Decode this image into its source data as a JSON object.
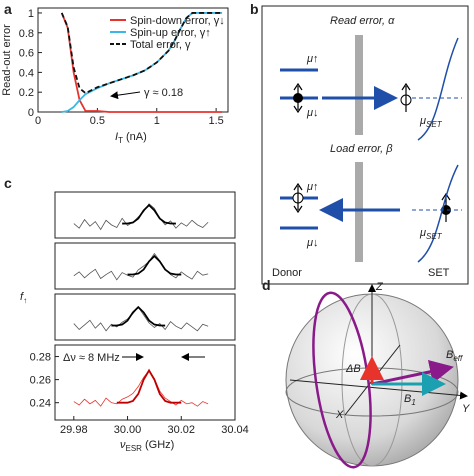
{
  "panel_labels": [
    "a",
    "b",
    "c",
    "d"
  ],
  "chart_data": [
    {
      "type": "line",
      "xlabel": {
        "main": "I",
        "sub": "T",
        "unit": " (nA)"
      },
      "ylabel": "Read-out error",
      "x": [
        0.2,
        0.25,
        0.3,
        0.35,
        0.4,
        0.5,
        0.6,
        0.7,
        0.8,
        0.9,
        1.0,
        1.1,
        1.15,
        1.2,
        1.25,
        1.3,
        1.4,
        1.55
      ],
      "series": [
        {
          "name": "Spin-down error, γ↓",
          "color": "#e8332d",
          "values": [
            1,
            0.85,
            0.4,
            0.12,
            0.01,
            0.01,
            0,
            0,
            0,
            0,
            0,
            0,
            0,
            0,
            0,
            0,
            0,
            0
          ]
        },
        {
          "name": "Spin-up error, γ↑",
          "color": "#3bb6e6",
          "values": [
            0,
            0.01,
            0.05,
            0.12,
            0.18,
            0.24,
            0.29,
            0.33,
            0.37,
            0.42,
            0.5,
            0.62,
            0.72,
            0.84,
            0.95,
            1,
            1,
            1
          ]
        },
        {
          "name": "Total error, γ",
          "color": "#111111",
          "dash": true,
          "values": [
            1,
            0.86,
            0.45,
            0.24,
            0.19,
            0.25,
            0.29,
            0.33,
            0.37,
            0.42,
            0.5,
            0.62,
            0.72,
            0.84,
            0.95,
            1,
            1,
            1
          ]
        }
      ],
      "xlim": [
        0,
        1.6
      ],
      "ylim": [
        0,
        1.05
      ],
      "xticks": [
        0,
        0.5,
        1,
        1.5
      ],
      "yticks": [
        0,
        0.2,
        0.4,
        0.6,
        0.8,
        1
      ],
      "legend": "upper right",
      "annotation": "γ ≈ 0.18"
    },
    {
      "type": "line",
      "ylabel": {
        "main": "f",
        "sub": "↑"
      },
      "xlabel": {
        "main": "ν",
        "sub": "ESR",
        "unit": " (GHz)"
      },
      "x": [
        29.98,
        29.982,
        29.984,
        29.986,
        29.988,
        29.99,
        29.992,
        29.994,
        29.996,
        29.998,
        30.0,
        30.002,
        30.004,
        30.006,
        30.008,
        30.01,
        30.012,
        30.014,
        30.016,
        30.018,
        30.02,
        30.022,
        30.024,
        30.026,
        30.028,
        30.03
      ],
      "xlim": [
        29.973,
        30.04
      ],
      "xticks": [
        29.98,
        {
          "value": 30,
          "label": "30.00"
        },
        30.02,
        30.04
      ],
      "panels": [
        {
          "ylim": [
            0.2,
            0.9
          ],
          "series": [
            {
              "color": "#555555",
              "values": [
                0.42,
                0.35,
                0.48,
                0.38,
                0.45,
                0.33,
                0.47,
                0.4,
                0.36,
                0.5,
                0.39,
                0.44,
                0.52,
                0.6,
                0.72,
                0.65,
                0.5,
                0.4,
                0.46,
                0.35,
                0.43,
                0.38,
                0.47,
                0.4,
                0.36,
                0.44
              ]
            },
            {
              "color": "#000000",
              "values": [
                null,
                null,
                null,
                null,
                null,
                null,
                null,
                null,
                null,
                0.42,
                0.421,
                0.435,
                0.496,
                0.62,
                0.7,
                0.62,
                0.496,
                0.435,
                0.421,
                0.42,
                null,
                null,
                null,
                null,
                null,
                null
              ]
            }
          ]
        },
        {
          "ylim": [
            0.2,
            0.9
          ],
          "series": [
            {
              "color": "#555555",
              "values": [
                0.4,
                0.46,
                0.37,
                0.44,
                0.5,
                0.36,
                0.42,
                0.47,
                0.34,
                0.45,
                0.41,
                0.38,
                0.49,
                0.55,
                0.62,
                0.74,
                0.63,
                0.5,
                0.42,
                0.37,
                0.46,
                0.4,
                0.35,
                0.47,
                0.41,
                0.43
              ]
            },
            {
              "color": "#000000",
              "values": [
                null,
                null,
                null,
                null,
                null,
                null,
                null,
                null,
                null,
                null,
                0.42,
                0.421,
                0.435,
                0.496,
                0.62,
                0.7,
                0.62,
                0.496,
                0.435,
                0.421,
                0.42,
                null,
                null,
                null,
                null,
                null
              ]
            }
          ]
        },
        {
          "ylim": [
            0.2,
            0.9
          ],
          "series": [
            {
              "color": "#555555",
              "values": [
                0.45,
                0.36,
                0.43,
                0.5,
                0.38,
                0.46,
                0.34,
                0.44,
                0.4,
                0.47,
                0.52,
                0.6,
                0.7,
                0.58,
                0.46,
                0.39,
                0.45,
                0.36,
                0.48,
                0.41,
                0.37,
                0.46,
                0.4,
                0.34,
                0.44,
                0.41
              ]
            },
            {
              "color": "#000000",
              "values": [
                null,
                null,
                null,
                null,
                null,
                null,
                null,
                0.42,
                0.421,
                0.435,
                0.496,
                0.62,
                0.7,
                0.62,
                0.496,
                0.435,
                0.421,
                0.42,
                null,
                null,
                null,
                null,
                null,
                null,
                null,
                null
              ]
            }
          ]
        },
        {
          "ylim": [
            0.225,
            0.29
          ],
          "yticks": [
            0.24,
            0.26,
            0.28
          ],
          "series": [
            {
              "color": "#e8332d",
              "values": [
                0.241,
                0.238,
                0.243,
                0.239,
                0.242,
                0.237,
                0.244,
                0.24,
                0.239,
                0.243,
                0.245,
                0.248,
                0.254,
                0.262,
                0.268,
                0.261,
                0.25,
                0.244,
                0.241,
                0.238,
                0.242,
                0.239,
                0.24,
                0.237,
                0.241,
                0.239
              ]
            },
            {
              "color": "#c00000",
              "values": [
                null,
                null,
                null,
                null,
                null,
                null,
                null,
                null,
                0.24,
                0.24,
                0.24,
                0.2415,
                0.2476,
                0.26,
                0.268,
                0.26,
                0.2476,
                0.2415,
                0.24,
                0.24,
                0.24,
                null,
                null,
                null,
                null,
                null
              ]
            }
          ]
        }
      ],
      "annotation": "Δν ≈ 8 MHz"
    }
  ],
  "diagram_b": {
    "read_title": "Read error, α",
    "load_title": "Load error, β",
    "mu_up": "μ↑",
    "mu_down": "μ↓",
    "mu_set": {
      "main": "μ",
      "sub": "SET"
    },
    "donor": "Donor",
    "set": "SET"
  },
  "diagram_d": {
    "z": "Z",
    "y": "Y",
    "x": "X",
    "delta_b": "ΔB",
    "b_eff": {
      "main": "B",
      "sub": "eff"
    },
    "b1": {
      "main": "B",
      "sub": "1"
    }
  }
}
